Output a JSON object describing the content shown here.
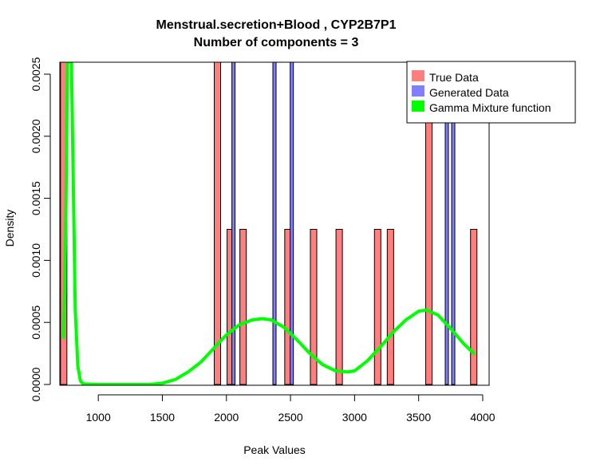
{
  "chart_data": {
    "type": "bar",
    "title": "Menstrual.secretion+Blood , CYP2B7P1",
    "subtitle": "Number of components =  3",
    "xlabel": "Peak Values",
    "ylabel": "Density",
    "xlim": [
      700,
      4050
    ],
    "ylim": [
      0,
      0.0025
    ],
    "x_ticks": [
      1000,
      1500,
      2000,
      2500,
      3000,
      3500,
      4000
    ],
    "x_tick_labels": [
      "1000",
      "1500",
      "2000",
      "2500",
      "3000",
      "3500",
      "4000"
    ],
    "y_ticks": [
      0,
      0.0005,
      0.001,
      0.0015,
      0.002,
      0.0025
    ],
    "y_tick_labels": [
      "0.0000",
      "0.0005",
      "0.0010",
      "0.0015",
      "0.0020",
      "0.0025"
    ],
    "bar_width": 50,
    "legend": {
      "position": "top-right",
      "entries": [
        {
          "label": "True Data",
          "color": "#ff7f7f"
        },
        {
          "label": "Generated Data",
          "color": "#7f7fff"
        },
        {
          "label": "Gamma Mixture function",
          "color": "#00ff00"
        }
      ]
    },
    "series": [
      {
        "name": "True Data",
        "kind": "bars",
        "color": "#ff7f7f",
        "x": [
          730,
          1930,
          2030,
          2130,
          2480,
          2680,
          2880,
          3180,
          3280,
          3580,
          3930
        ],
        "values": [
          0.0025,
          0.0025,
          0.00125,
          0.00125,
          0.00125,
          0.00125,
          0.00125,
          0.00125,
          0.00125,
          0.0025,
          0.00125
        ]
      },
      {
        "name": "Generated Data",
        "kind": "bars",
        "color": "#7f7fff",
        "x": [
          2055,
          2375,
          2510,
          3720,
          3770
        ],
        "values": [
          0.0025,
          0.0025,
          0.0025,
          0.0025,
          0.0025
        ]
      },
      {
        "name": "Gamma Mixture function",
        "kind": "line",
        "color": "#00ff00",
        "x": [
          730,
          745,
          760,
          775,
          790,
          805,
          820,
          840,
          860,
          880,
          1000,
          1200,
          1400,
          1500,
          1600,
          1700,
          1800,
          1900,
          2000,
          2100,
          2200,
          2280,
          2350,
          2450,
          2550,
          2650,
          2750,
          2850,
          2950,
          3000,
          3100,
          3200,
          3300,
          3400,
          3500,
          3560,
          3650,
          3750,
          3850,
          3930
        ],
        "values": [
          0.00038,
          0.0012,
          0.0026,
          0.0026,
          0.0026,
          0.0016,
          0.0006,
          0.00015,
          3e-05,
          5e-06,
          0.0,
          0.0,
          0.0,
          1e-05,
          4e-05,
          0.0001,
          0.00018,
          0.00029,
          0.0004,
          0.00048,
          0.00052,
          0.00053,
          0.00052,
          0.00046,
          0.00036,
          0.00025,
          0.00016,
          0.00011,
          0.0001,
          0.00011,
          0.00019,
          0.0003,
          0.00042,
          0.00052,
          0.00059,
          0.0006,
          0.00056,
          0.00045,
          0.00033,
          0.00025
        ]
      }
    ]
  }
}
